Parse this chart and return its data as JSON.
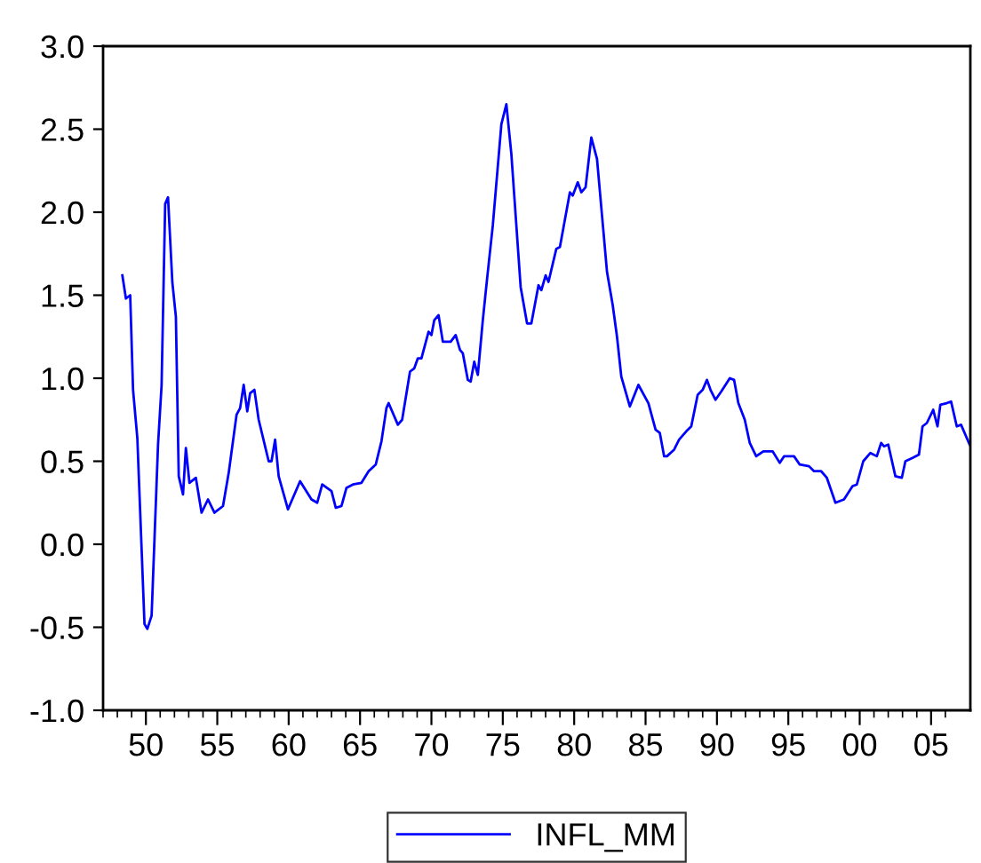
{
  "chart_data": {
    "type": "line",
    "x": [
      1948.35,
      1948.6,
      1948.9,
      1949.1,
      1949.4,
      1949.9,
      1950.1,
      1950.4,
      1950.85,
      1951.1,
      1951.35,
      1951.55,
      1951.85,
      1952.1,
      1952.3,
      1952.6,
      1952.8,
      1953.05,
      1953.5,
      1953.9,
      1954.35,
      1954.8,
      1955.4,
      1955.8,
      1956.35,
      1956.6,
      1956.85,
      1957.1,
      1957.3,
      1957.6,
      1957.9,
      1958.6,
      1958.8,
      1959.05,
      1959.3,
      1959.95,
      1960.8,
      1961.6,
      1962.0,
      1962.35,
      1963.0,
      1963.3,
      1963.7,
      1964.05,
      1964.5,
      1965.1,
      1965.6,
      1966.1,
      1966.5,
      1966.85,
      1967.0,
      1967.65,
      1967.95,
      1968.5,
      1968.8,
      1969.05,
      1969.3,
      1969.8,
      1970.0,
      1970.2,
      1970.5,
      1970.8,
      1971.35,
      1971.7,
      1972.0,
      1972.2,
      1972.55,
      1972.75,
      1973.0,
      1973.25,
      1973.6,
      1973.9,
      1974.3,
      1974.9,
      1975.25,
      1975.6,
      1976.25,
      1976.7,
      1977.0,
      1977.5,
      1977.7,
      1978.0,
      1978.2,
      1978.75,
      1979.0,
      1979.7,
      1979.9,
      1980.25,
      1980.5,
      1980.8,
      1981.2,
      1981.6,
      1982.3,
      1982.7,
      1983.0,
      1983.3,
      1983.9,
      1984.5,
      1985.2,
      1985.7,
      1986.0,
      1986.3,
      1986.5,
      1987.0,
      1987.35,
      1987.85,
      1988.2,
      1988.65,
      1989.0,
      1989.3,
      1989.55,
      1989.9,
      1990.3,
      1990.9,
      1991.2,
      1991.5,
      1991.95,
      1992.3,
      1992.75,
      1993.25,
      1993.9,
      1994.4,
      1994.7,
      1995.4,
      1995.8,
      1996.45,
      1996.8,
      1997.3,
      1997.7,
      1998.3,
      1998.9,
      1999.5,
      1999.8,
      2000.25,
      2000.75,
      2001.2,
      2001.5,
      2001.7,
      2002.0,
      2002.5,
      2002.95,
      2003.2,
      2003.7,
      2004.15,
      2004.4,
      2004.7,
      2005.15,
      2005.45,
      2005.65,
      2006.1,
      2006.4,
      2006.8,
      2007.1,
      2007.7
    ],
    "series": [
      {
        "name": "INFL_MM",
        "color": "#0000ff",
        "values": [
          1.62,
          1.48,
          1.5,
          0.93,
          0.64,
          -0.48,
          -0.51,
          -0.43,
          0.6,
          0.96,
          2.05,
          2.09,
          1.58,
          1.37,
          0.41,
          0.3,
          0.58,
          0.37,
          0.4,
          0.19,
          0.27,
          0.19,
          0.23,
          0.43,
          0.78,
          0.82,
          0.96,
          0.8,
          0.91,
          0.93,
          0.75,
          0.5,
          0.5,
          0.63,
          0.41,
          0.21,
          0.38,
          0.27,
          0.25,
          0.36,
          0.32,
          0.22,
          0.23,
          0.34,
          0.36,
          0.37,
          0.44,
          0.48,
          0.62,
          0.82,
          0.85,
          0.72,
          0.75,
          1.04,
          1.06,
          1.12,
          1.12,
          1.28,
          1.26,
          1.35,
          1.38,
          1.22,
          1.22,
          1.26,
          1.17,
          1.15,
          0.99,
          0.98,
          1.1,
          1.02,
          1.35,
          1.6,
          1.92,
          2.53,
          2.65,
          2.35,
          1.55,
          1.33,
          1.33,
          1.56,
          1.53,
          1.62,
          1.58,
          1.78,
          1.79,
          2.12,
          2.1,
          2.18,
          2.12,
          2.15,
          2.45,
          2.32,
          1.64,
          1.44,
          1.25,
          1.01,
          0.83,
          0.96,
          0.85,
          0.69,
          0.67,
          0.53,
          0.53,
          0.57,
          0.63,
          0.68,
          0.71,
          0.9,
          0.93,
          0.99,
          0.93,
          0.87,
          0.92,
          1.0,
          0.99,
          0.85,
          0.75,
          0.61,
          0.53,
          0.56,
          0.56,
          0.49,
          0.53,
          0.53,
          0.48,
          0.47,
          0.44,
          0.44,
          0.4,
          0.25,
          0.27,
          0.35,
          0.36,
          0.5,
          0.55,
          0.53,
          0.61,
          0.59,
          0.6,
          0.41,
          0.4,
          0.5,
          0.52,
          0.54,
          0.71,
          0.73,
          0.81,
          0.71,
          0.84,
          0.85,
          0.86,
          0.71,
          0.72,
          0.6
        ]
      }
    ],
    "xlim": [
      1947,
      2007.75
    ],
    "xticks": [
      {
        "value": 1947,
        "label": null
      },
      {
        "value": 1948,
        "label": null
      },
      {
        "value": 1949,
        "label": null
      },
      {
        "value": 1950,
        "label": "50"
      },
      {
        "value": 1951,
        "label": null
      },
      {
        "value": 1952,
        "label": null
      },
      {
        "value": 1953,
        "label": null
      },
      {
        "value": 1954,
        "label": null
      },
      {
        "value": 1955,
        "label": "55"
      },
      {
        "value": 1956,
        "label": null
      },
      {
        "value": 1957,
        "label": null
      },
      {
        "value": 1958,
        "label": null
      },
      {
        "value": 1959,
        "label": null
      },
      {
        "value": 1960,
        "label": "60"
      },
      {
        "value": 1961,
        "label": null
      },
      {
        "value": 1962,
        "label": null
      },
      {
        "value": 1963,
        "label": null
      },
      {
        "value": 1964,
        "label": null
      },
      {
        "value": 1965,
        "label": "65"
      },
      {
        "value": 1966,
        "label": null
      },
      {
        "value": 1967,
        "label": null
      },
      {
        "value": 1968,
        "label": null
      },
      {
        "value": 1969,
        "label": null
      },
      {
        "value": 1970,
        "label": "70"
      },
      {
        "value": 1971,
        "label": null
      },
      {
        "value": 1972,
        "label": null
      },
      {
        "value": 1973,
        "label": null
      },
      {
        "value": 1974,
        "label": null
      },
      {
        "value": 1975,
        "label": "75"
      },
      {
        "value": 1976,
        "label": null
      },
      {
        "value": 1977,
        "label": null
      },
      {
        "value": 1978,
        "label": null
      },
      {
        "value": 1979,
        "label": null
      },
      {
        "value": 1980,
        "label": "80"
      },
      {
        "value": 1981,
        "label": null
      },
      {
        "value": 1982,
        "label": null
      },
      {
        "value": 1983,
        "label": null
      },
      {
        "value": 1984,
        "label": null
      },
      {
        "value": 1985,
        "label": "85"
      },
      {
        "value": 1986,
        "label": null
      },
      {
        "value": 1987,
        "label": null
      },
      {
        "value": 1988,
        "label": null
      },
      {
        "value": 1989,
        "label": null
      },
      {
        "value": 1990,
        "label": "90"
      },
      {
        "value": 1991,
        "label": null
      },
      {
        "value": 1992,
        "label": null
      },
      {
        "value": 1993,
        "label": null
      },
      {
        "value": 1994,
        "label": null
      },
      {
        "value": 1995,
        "label": "95"
      },
      {
        "value": 1996,
        "label": null
      },
      {
        "value": 1997,
        "label": null
      },
      {
        "value": 1998,
        "label": null
      },
      {
        "value": 1999,
        "label": null
      },
      {
        "value": 2000,
        "label": "00"
      },
      {
        "value": 2001,
        "label": null
      },
      {
        "value": 2002,
        "label": null
      },
      {
        "value": 2003,
        "label": null
      },
      {
        "value": 2004,
        "label": null
      },
      {
        "value": 2005,
        "label": "05"
      },
      {
        "value": 2006,
        "label": null
      }
    ],
    "ylim": [
      -1.0,
      3.0
    ],
    "yticks": [
      {
        "value": -1.0,
        "label": "-1.0"
      },
      {
        "value": -0.5,
        "label": "-0.5"
      },
      {
        "value": 0.0,
        "label": "0.0"
      },
      {
        "value": 0.5,
        "label": "0.5"
      },
      {
        "value": 1.0,
        "label": "1.0"
      },
      {
        "value": 1.5,
        "label": "1.5"
      },
      {
        "value": 2.0,
        "label": "2.0"
      },
      {
        "value": 2.5,
        "label": "2.5"
      },
      {
        "value": 3.0,
        "label": "3.0"
      }
    ],
    "grid": false,
    "legend": "bottom",
    "marker": "none",
    "line_style": "solid"
  }
}
